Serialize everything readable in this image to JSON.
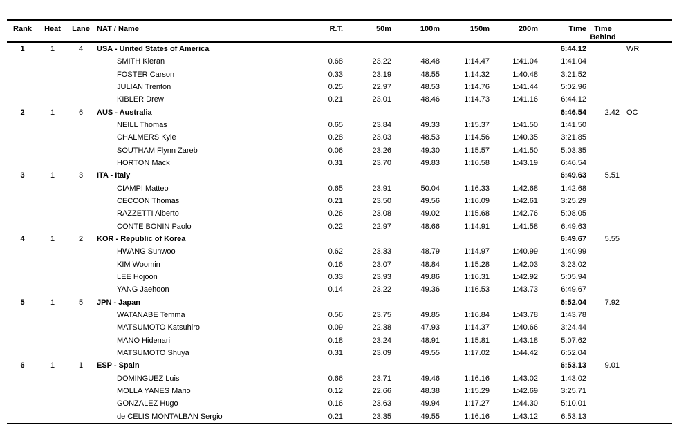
{
  "columns": {
    "rank": "Rank",
    "heat": "Heat",
    "lane": "Lane",
    "nat_name": "NAT / Name",
    "rt": "R.T.",
    "m50": "50m",
    "m100": "100m",
    "m150": "150m",
    "m200": "200m",
    "time": "Time",
    "behind": "Time Behind"
  },
  "teams": [
    {
      "rank": "1",
      "heat": "1",
      "lane": "4",
      "name": "USA - United States of America",
      "time": "6:44.12",
      "behind": "",
      "record": "WR",
      "swimmers": [
        {
          "name": "SMITH Kieran",
          "rt": "0.68",
          "m50": "23.22",
          "m100": "48.48",
          "m150": "1:14.47",
          "m200": "1:41.04",
          "time": "1:41.04"
        },
        {
          "name": "FOSTER Carson",
          "rt": "0.33",
          "m50": "23.19",
          "m100": "48.55",
          "m150": "1:14.32",
          "m200": "1:40.48",
          "time": "3:21.52"
        },
        {
          "name": "JULIAN Trenton",
          "rt": "0.25",
          "m50": "22.97",
          "m100": "48.53",
          "m150": "1:14.76",
          "m200": "1:41.44",
          "time": "5:02.96"
        },
        {
          "name": "KIBLER Drew",
          "rt": "0.21",
          "m50": "23.01",
          "m100": "48.46",
          "m150": "1:14.73",
          "m200": "1:41.16",
          "time": "6:44.12"
        }
      ]
    },
    {
      "rank": "2",
      "heat": "1",
      "lane": "6",
      "name": "AUS - Australia",
      "time": "6:46.54",
      "behind": "2.42",
      "record": "OC",
      "swimmers": [
        {
          "name": "NEILL Thomas",
          "rt": "0.65",
          "m50": "23.84",
          "m100": "49.33",
          "m150": "1:15.37",
          "m200": "1:41.50",
          "time": "1:41.50"
        },
        {
          "name": "CHALMERS Kyle",
          "rt": "0.28",
          "m50": "23.03",
          "m100": "48.53",
          "m150": "1:14.56",
          "m200": "1:40.35",
          "time": "3:21.85"
        },
        {
          "name": "SOUTHAM Flynn Zareb",
          "rt": "0.06",
          "m50": "23.26",
          "m100": "49.30",
          "m150": "1:15.57",
          "m200": "1:41.50",
          "time": "5:03.35"
        },
        {
          "name": "HORTON Mack",
          "rt": "0.31",
          "m50": "23.70",
          "m100": "49.83",
          "m150": "1:16.58",
          "m200": "1:43.19",
          "time": "6:46.54"
        }
      ]
    },
    {
      "rank": "3",
      "heat": "1",
      "lane": "3",
      "name": "ITA - Italy",
      "time": "6:49.63",
      "behind": "5.51",
      "record": "",
      "swimmers": [
        {
          "name": "CIAMPI Matteo",
          "rt": "0.65",
          "m50": "23.91",
          "m100": "50.04",
          "m150": "1:16.33",
          "m200": "1:42.68",
          "time": "1:42.68"
        },
        {
          "name": "CECCON Thomas",
          "rt": "0.21",
          "m50": "23.50",
          "m100": "49.56",
          "m150": "1:16.09",
          "m200": "1:42.61",
          "time": "3:25.29"
        },
        {
          "name": "RAZZETTI Alberto",
          "rt": "0.26",
          "m50": "23.08",
          "m100": "49.02",
          "m150": "1:15.68",
          "m200": "1:42.76",
          "time": "5:08.05"
        },
        {
          "name": "CONTE BONIN Paolo",
          "rt": "0.22",
          "m50": "22.97",
          "m100": "48.66",
          "m150": "1:14.91",
          "m200": "1:41.58",
          "time": "6:49.63"
        }
      ]
    },
    {
      "rank": "4",
      "heat": "1",
      "lane": "2",
      "name": "KOR - Republic of Korea",
      "time": "6:49.67",
      "behind": "5.55",
      "record": "",
      "swimmers": [
        {
          "name": "HWANG Sunwoo",
          "rt": "0.62",
          "m50": "23.33",
          "m100": "48.79",
          "m150": "1:14.97",
          "m200": "1:40.99",
          "time": "1:40.99"
        },
        {
          "name": "KIM Woomin",
          "rt": "0.16",
          "m50": "23.07",
          "m100": "48.84",
          "m150": "1:15.28",
          "m200": "1:42.03",
          "time": "3:23.02"
        },
        {
          "name": "LEE Hojoon",
          "rt": "0.33",
          "m50": "23.93",
          "m100": "49.86",
          "m150": "1:16.31",
          "m200": "1:42.92",
          "time": "5:05.94"
        },
        {
          "name": "YANG Jaehoon",
          "rt": "0.14",
          "m50": "23.22",
          "m100": "49.36",
          "m150": "1:16.53",
          "m200": "1:43.73",
          "time": "6:49.67"
        }
      ]
    },
    {
      "rank": "5",
      "heat": "1",
      "lane": "5",
      "name": "JPN - Japan",
      "time": "6:52.04",
      "behind": "7.92",
      "record": "",
      "swimmers": [
        {
          "name": "WATANABE Temma",
          "rt": "0.56",
          "m50": "23.75",
          "m100": "49.85",
          "m150": "1:16.84",
          "m200": "1:43.78",
          "time": "1:43.78"
        },
        {
          "name": "MATSUMOTO Katsuhiro",
          "rt": "0.09",
          "m50": "22.38",
          "m100": "47.93",
          "m150": "1:14.37",
          "m200": "1:40.66",
          "time": "3:24.44"
        },
        {
          "name": "MANO Hidenari",
          "rt": "0.18",
          "m50": "23.24",
          "m100": "48.91",
          "m150": "1:15.81",
          "m200": "1:43.18",
          "time": "5:07.62"
        },
        {
          "name": "MATSUMOTO Shuya",
          "rt": "0.31",
          "m50": "23.09",
          "m100": "49.55",
          "m150": "1:17.02",
          "m200": "1:44.42",
          "time": "6:52.04"
        }
      ]
    },
    {
      "rank": "6",
      "heat": "1",
      "lane": "1",
      "name": "ESP - Spain",
      "time": "6:53.13",
      "behind": "9.01",
      "record": "",
      "swimmers": [
        {
          "name": "DOMINGUEZ Luis",
          "rt": "0.66",
          "m50": "23.71",
          "m100": "49.46",
          "m150": "1:16.16",
          "m200": "1:43.02",
          "time": "1:43.02"
        },
        {
          "name": "MOLLA YANES Mario",
          "rt": "0.12",
          "m50": "22.66",
          "m100": "48.38",
          "m150": "1:15.29",
          "m200": "1:42.69",
          "time": "3:25.71"
        },
        {
          "name": "GONZALEZ Hugo",
          "rt": "0.16",
          "m50": "23.63",
          "m100": "49.94",
          "m150": "1:17.27",
          "m200": "1:44.30",
          "time": "5:10.01"
        },
        {
          "name": "de CELIS MONTALBAN Sergio",
          "rt": "0.21",
          "m50": "23.35",
          "m100": "49.55",
          "m150": "1:16.16",
          "m200": "1:43.12",
          "time": "6:53.13"
        }
      ]
    }
  ]
}
